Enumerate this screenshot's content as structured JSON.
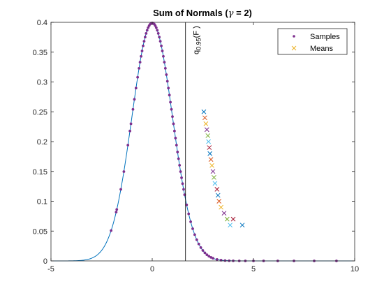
{
  "chart_data": {
    "type": "scatter",
    "title": "Sum of Normals (γ = 2)",
    "title_prefix": "Sum of Normals (",
    "title_symbol": "γ",
    "title_suffix": " = 2)",
    "xlabel": "",
    "ylabel": "",
    "xlim": [
      -5,
      10
    ],
    "ylim": [
      0,
      0.4
    ],
    "xticks": [
      "-5",
      "0",
      "5",
      "10"
    ],
    "yticks": [
      "0",
      "0.05",
      "0.1",
      "0.15",
      "0.2",
      "0.25",
      "0.3",
      "0.35",
      "0.4"
    ],
    "grid": false,
    "legend": {
      "placement": "top-right",
      "entries": [
        "Samples",
        "Means"
      ]
    },
    "density_curve": {
      "name": "",
      "mean": 0,
      "sd": 1,
      "color": "#0072BD"
    },
    "vertical_line": {
      "x": 1.645,
      "color": "#000000"
    },
    "annotation": {
      "base": "q",
      "subscript": "0.95",
      "suffix": "(F )",
      "x": 1.645
    },
    "samples": {
      "name": "Samples",
      "color": "#7E2F8E",
      "x": [
        -2.03,
        -1.78,
        -1.75,
        -1.55,
        -1.4,
        -1.2,
        -1.1,
        -1.05,
        -0.95,
        -0.88,
        -0.8,
        -0.72,
        -0.65,
        -0.6,
        -0.55,
        -0.5,
        -0.45,
        -0.4,
        -0.35,
        -0.3,
        -0.25,
        -0.2,
        -0.15,
        -0.1,
        -0.05,
        0.0,
        0.05,
        0.1,
        0.15,
        0.2,
        0.25,
        0.3,
        0.35,
        0.4,
        0.45,
        0.5,
        0.55,
        0.6,
        0.65,
        0.7,
        0.75,
        0.8,
        0.85,
        0.9,
        0.95,
        1.0,
        1.05,
        1.1,
        1.15,
        1.2,
        1.25,
        1.3,
        1.35,
        1.4,
        1.45,
        1.5,
        1.55,
        1.6,
        1.7,
        1.8,
        1.9,
        2.0,
        2.1,
        2.2,
        2.3,
        2.4,
        2.5,
        2.6,
        2.7,
        2.8,
        2.9,
        3.0,
        3.2,
        3.4,
        3.6,
        3.8,
        4.0,
        4.3,
        4.6,
        5.0,
        5.5,
        6.2,
        7.0,
        8.0,
        9.1
      ]
    },
    "means": {
      "name": "Means",
      "colors": [
        "#0072BD",
        "#D95319",
        "#EDB120",
        "#7E2F8E",
        "#77AC30",
        "#4DBEEE",
        "#A2142F"
      ],
      "x": [
        2.55,
        2.6,
        2.65,
        2.7,
        2.75,
        2.78,
        2.82,
        2.85,
        2.9,
        2.95,
        3.0,
        3.05,
        3.1,
        3.2,
        3.25,
        3.3,
        3.4,
        3.55,
        3.7,
        3.85,
        4.0,
        4.45
      ],
      "y": [
        0.25,
        0.24,
        0.23,
        0.22,
        0.21,
        0.2,
        0.19,
        0.18,
        0.17,
        0.16,
        0.15,
        0.14,
        0.13,
        0.12,
        0.11,
        0.1,
        0.09,
        0.08,
        0.07,
        0.06,
        0.07,
        0.06
      ]
    }
  }
}
